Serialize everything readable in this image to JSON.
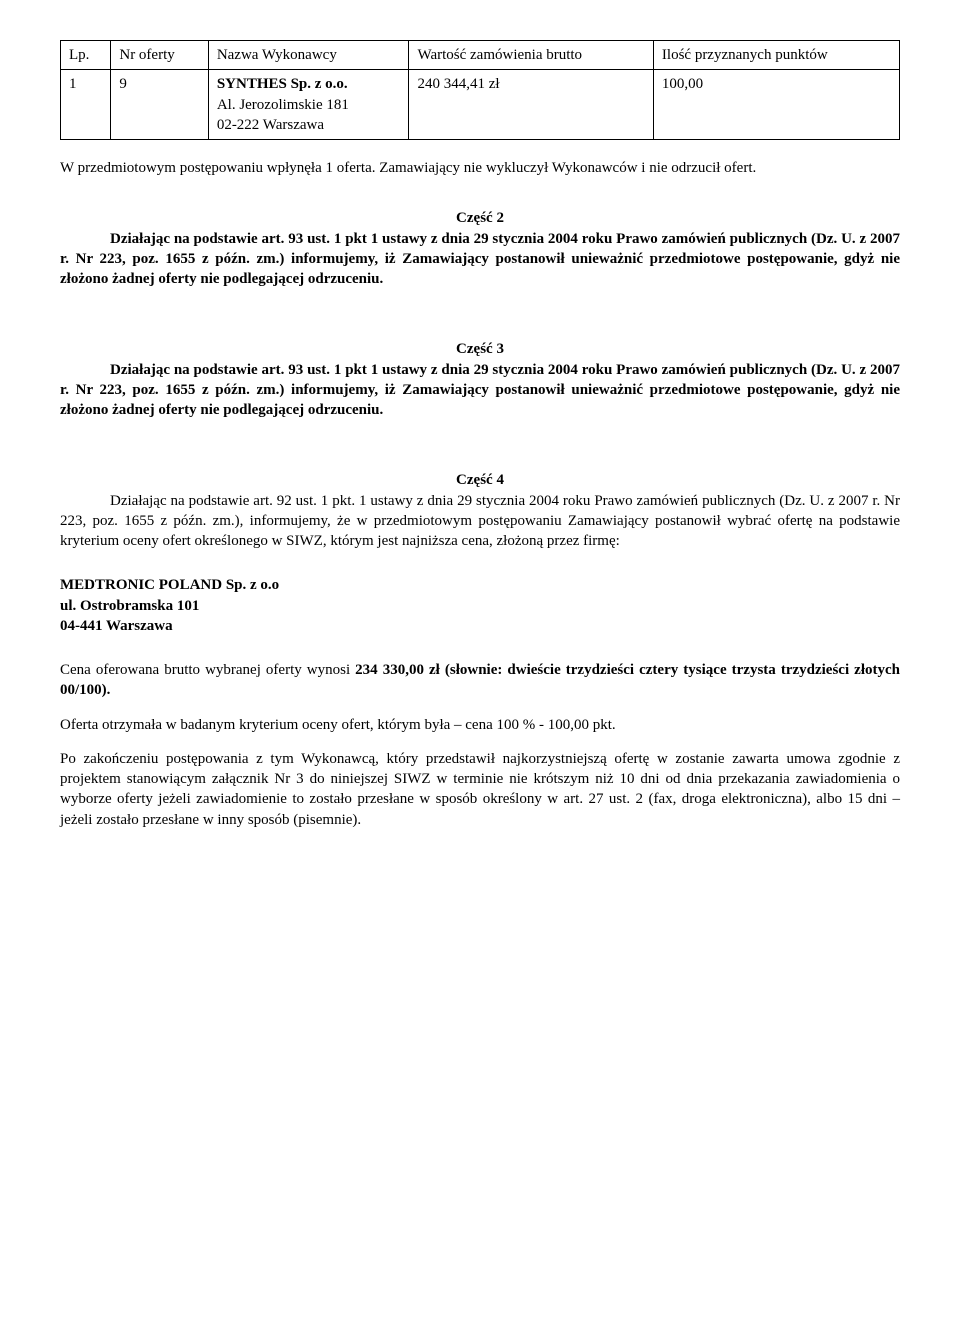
{
  "table1": {
    "headers": [
      "Lp.",
      "Nr oferty",
      "Nazwa Wykonawcy",
      "Wartość zamówienia brutto",
      "Ilość przyznanych punktów"
    ],
    "row": {
      "lp": "1",
      "nr": "9",
      "nazwa_bold": "SYNTHES Sp. z o.o.",
      "nazwa_rest": "Al. Jerozolimskie 181\n02-222 Warszawa",
      "wartosc": "240 344,41 zł",
      "punkty": "100,00"
    }
  },
  "para_post_table": "W przedmiotowym postępowaniu wpłynęła 1 oferta. Zamawiający nie wykluczył Wykonawców i nie odrzucił ofert.",
  "czesc2": {
    "title": "Część 2",
    "text_prefix": "Działając na podstawie art. 93 ust. 1 pkt 1 ustawy z dnia 29 stycznia 2004 roku Prawo zamówień publicznych (Dz. U. z 2007 r. Nr 223, poz. 1655 z późn. zm.) informujemy, iż Zamawiający postanowił unieważnić przedmiotowe postępowanie, gdyż nie złożono żadnej oferty nie podlegającej odrzuceniu."
  },
  "czesc3": {
    "title": "Część 3",
    "text": "Działając na podstawie art. 93 ust. 1 pkt 1 ustawy z dnia 29 stycznia 2004 roku Prawo zamówień publicznych (Dz. U. z 2007 r. Nr 223, poz. 1655 z późn. zm.) informujemy, iż Zamawiający postanowił unieważnić przedmiotowe postępowanie, gdyż nie złożono żadnej oferty nie podlegającej odrzuceniu."
  },
  "czesc4": {
    "title": "Część 4",
    "text": "Działając na podstawie art. 92 ust. 1 pkt. 1 ustawy z dnia 29 stycznia 2004 roku Prawo zamówień publicznych (Dz. U. z 2007 r. Nr 223, poz. 1655 z późn. zm.), informujemy, że w przedmiotowym postępowaniu Zamawiający postanowił wybrać ofertę na podstawie kryterium oceny ofert określonego w SIWZ, którym jest najniższa cena, złożoną przez firmę:"
  },
  "company": {
    "line1": "MEDTRONIC POLAND Sp. z o.o",
    "line2": "ul. Ostrobramska 101",
    "line3": "04-441 Warszawa"
  },
  "cena_line_prefix": "Cena oferowana brutto wybranej oferty wynosi ",
  "cena_line_bold": "234 330,00 zł (słownie: dwieście trzydzieści cztery tysiące trzysta trzydzieści złotych 00/100).",
  "oferta_line": "Oferta otrzymała w badanym kryterium oceny ofert, którym była – cena 100 % - 100,00 pkt.",
  "final_para": "Po zakończeniu postępowania z tym Wykonawcą, który przedstawił najkorzystniejszą ofertę w zostanie zawarta umowa zgodnie z projektem stanowiącym załącznik Nr 3 do niniejszej SIWZ w terminie nie krótszym niż 10 dni od dnia przekazania zawiadomienia o wyborze oferty jeżeli zawiadomienie to zostało przesłane w sposób określony w art. 27 ust. 2 (fax, droga elektroniczna), albo 15 dni – jeżeli zostało przesłane w inny sposób (pisemnie)."
}
